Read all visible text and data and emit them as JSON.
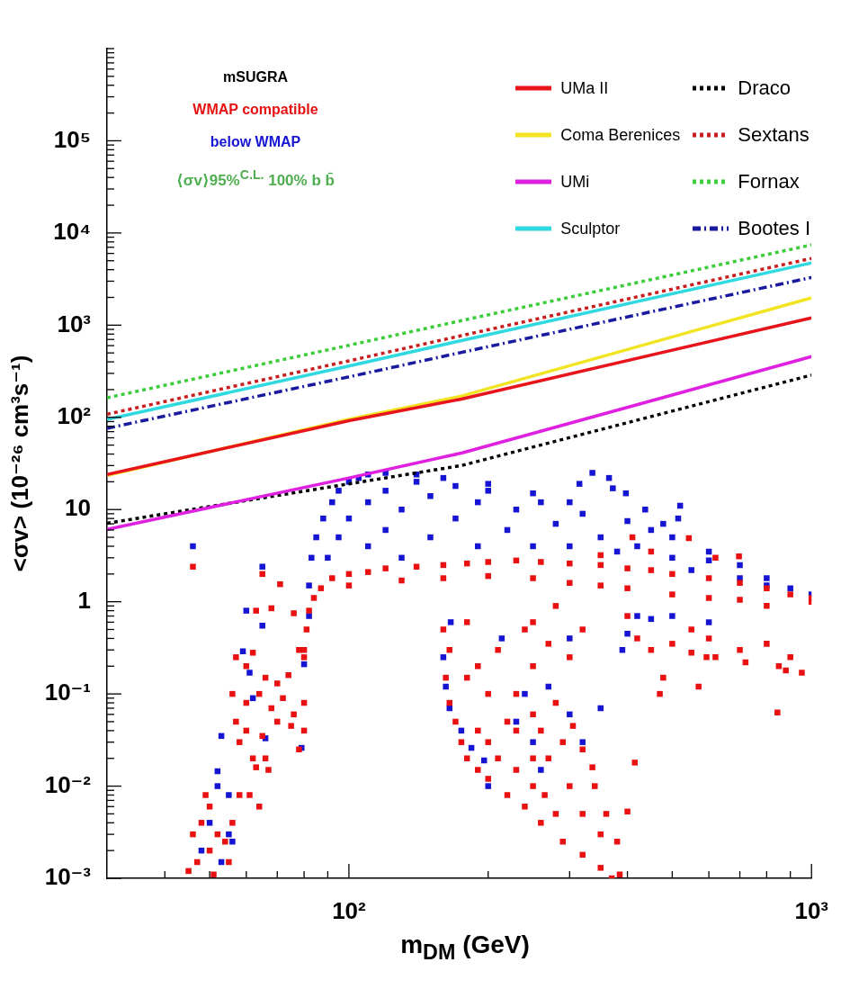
{
  "chart_data": {
    "type": "line",
    "log": "xy",
    "marker": "none",
    "legend": "top right",
    "xlabel": "m$_{DM}$ (GeV)",
    "ylabel": "<σv> (10⁻²⁶ cm³s⁻¹)",
    "annotations": [
      "mSUGRA",
      "⟨σv⟩95%$^{C.L.}$ 100% b b̄"
    ],
    "xlim": [
      30,
      1000
    ],
    "ylim": [
      0.001,
      1000000
    ],
    "xticks": [
      {
        "value": 40,
        "label": null
      },
      {
        "value": 50,
        "label": null
      },
      {
        "value": 60,
        "label": null
      },
      {
        "value": 70,
        "label": null
      },
      {
        "value": 80,
        "label": null
      },
      {
        "value": 90,
        "label": null
      },
      {
        "value": 100,
        "label": "10²"
      },
      {
        "value": 200,
        "label": null
      },
      {
        "value": 300,
        "label": null
      },
      {
        "value": 400,
        "label": null
      },
      {
        "value": 500,
        "label": null
      },
      {
        "value": 600,
        "label": null
      },
      {
        "value": 700,
        "label": null
      },
      {
        "value": 800,
        "label": null
      },
      {
        "value": 900,
        "label": null
      },
      {
        "value": 1000,
        "label": "10³"
      }
    ],
    "yticks": [
      {
        "value": 0.001,
        "label": "10⁻³"
      },
      {
        "value": 0.002,
        "label": null
      },
      {
        "value": 0.003,
        "label": null
      },
      {
        "value": 0.004,
        "label": null
      },
      {
        "value": 0.005,
        "label": null
      },
      {
        "value": 0.006,
        "label": null
      },
      {
        "value": 0.007,
        "label": null
      },
      {
        "value": 0.008,
        "label": null
      },
      {
        "value": 0.009,
        "label": null
      },
      {
        "value": 0.01,
        "label": "10⁻²"
      },
      {
        "value": 0.02,
        "label": null
      },
      {
        "value": 0.03,
        "label": null
      },
      {
        "value": 0.04,
        "label": null
      },
      {
        "value": 0.05,
        "label": null
      },
      {
        "value": 0.06,
        "label": null
      },
      {
        "value": 0.07,
        "label": null
      },
      {
        "value": 0.08,
        "label": null
      },
      {
        "value": 0.09,
        "label": null
      },
      {
        "value": 0.1,
        "label": "10⁻¹"
      },
      {
        "value": 0.2,
        "label": null
      },
      {
        "value": 0.3,
        "label": null
      },
      {
        "value": 0.4,
        "label": null
      },
      {
        "value": 0.5,
        "label": null
      },
      {
        "value": 0.6,
        "label": null
      },
      {
        "value": 0.7,
        "label": null
      },
      {
        "value": 0.8,
        "label": null
      },
      {
        "value": 0.9,
        "label": null
      },
      1,
      {
        "value": 2,
        "label": null
      },
      {
        "value": 3,
        "label": null
      },
      {
        "value": 4,
        "label": null
      },
      {
        "value": 5,
        "label": null
      },
      {
        "value": 6,
        "label": null
      },
      {
        "value": 7,
        "label": null
      },
      {
        "value": 8,
        "label": null
      },
      {
        "value": 9,
        "label": null
      },
      10,
      {
        "value": 20,
        "label": null
      },
      {
        "value": 30,
        "label": null
      },
      {
        "value": 40,
        "label": null
      },
      {
        "value": 50,
        "label": null
      },
      {
        "value": 60,
        "label": null
      },
      {
        "value": 70,
        "label": null
      },
      {
        "value": 80,
        "label": null
      },
      {
        "value": 90,
        "label": null
      },
      {
        "value": 100,
        "label": "10²"
      },
      {
        "value": 200,
        "label": null
      },
      {
        "value": 300,
        "label": null
      },
      {
        "value": 400,
        "label": null
      },
      {
        "value": 500,
        "label": null
      },
      {
        "value": 600,
        "label": null
      },
      {
        "value": 700,
        "label": null
      },
      {
        "value": 800,
        "label": null
      },
      {
        "value": 900,
        "label": null
      },
      {
        "value": 1000,
        "label": "10³"
      },
      {
        "value": 2000,
        "label": null
      },
      {
        "value": 3000,
        "label": null
      },
      {
        "value": 4000,
        "label": null
      },
      {
        "value": 5000,
        "label": null
      },
      {
        "value": 6000,
        "label": null
      },
      {
        "value": 7000,
        "label": null
      },
      {
        "value": 8000,
        "label": null
      },
      {
        "value": 9000,
        "label": null
      },
      {
        "value": 10000,
        "label": "10⁴"
      },
      {
        "value": 20000,
        "label": null
      },
      {
        "value": 30000,
        "label": null
      },
      {
        "value": 40000,
        "label": null
      },
      {
        "value": 50000,
        "label": null
      },
      {
        "value": 60000,
        "label": null
      },
      {
        "value": 70000,
        "label": null
      },
      {
        "value": 80000,
        "label": null
      },
      {
        "value": 90000,
        "label": null
      },
      {
        "value": 100000,
        "label": "10⁵"
      },
      {
        "value": 200000,
        "label": null
      },
      {
        "value": 300000,
        "label": null
      },
      {
        "value": 400000,
        "label": null
      },
      {
        "value": 500000,
        "label": null
      },
      {
        "value": 600000,
        "label": null
      },
      {
        "value": 700000,
        "label": null
      },
      {
        "value": 800000,
        "label": null
      },
      {
        "value": 900000,
        "label": null
      },
      {
        "value": 1000000,
        "label": null
      }
    ],
    "series": [
      {
        "name": "below WMAP",
        "type": "scatter",
        "marker": "square",
        "color": "#1414d2",
        "x": [
          46,
          65,
          60,
          65,
          59,
          61,
          62,
          53,
          52,
          55,
          52,
          50,
          55,
          53,
          48,
          56,
          80,
          79,
          66,
          82,
          82,
          83,
          85,
          88,
          92,
          95,
          100,
          105,
          110,
          120,
          140,
          160,
          200,
          250,
          300,
          400,
          500,
          600,
          700,
          800,
          900,
          1000,
          90,
          95,
          100,
          110,
          110,
          120,
          120,
          130,
          130,
          140,
          150,
          150,
          170,
          170,
          190,
          190,
          200,
          220,
          230,
          250,
          260,
          280,
          300,
          320,
          350,
          380,
          420,
          450,
          500,
          550,
          600,
          700,
          800,
          336,
          365,
          372,
          315,
          397,
          437,
          520,
          515,
          478,
          166,
          160,
          162,
          165,
          175,
          184,
          200,
          196,
          230,
          240,
          214,
          250,
          260,
          270,
          300,
          320,
          350,
          400,
          390,
          300,
          420,
          450,
          500,
          600
        ],
        "values": [
          4,
          2.4,
          0.8,
          0.55,
          0.29,
          0.17,
          0.09,
          0.035,
          0.0145,
          0.008,
          0.01,
          0.004,
          0.003,
          0.0015,
          0.002,
          0.0025,
          0.21,
          0.026,
          0.033,
          0.7,
          1.5,
          3,
          5,
          8,
          12,
          16,
          20,
          22,
          24,
          25,
          24,
          22,
          19,
          15,
          12,
          7.5,
          5,
          3.5,
          2.5,
          1.8,
          1.4,
          1.2,
          3,
          5,
          8,
          4,
          12,
          6,
          16,
          3,
          10,
          20,
          5,
          14,
          8,
          18,
          4,
          12,
          16,
          6,
          10,
          4,
          12,
          7,
          4,
          9,
          5,
          3.5,
          4,
          6,
          3,
          2.2,
          2.8,
          1.8,
          1.5,
          25,
          22,
          17,
          19,
          15,
          10,
          11,
          8,
          7,
          0.6,
          0.25,
          0.12,
          0.07,
          0.04,
          0.026,
          0.01,
          0.019,
          0.05,
          0.1,
          0.4,
          0.03,
          0.015,
          0.12,
          0.06,
          0.03,
          0.07,
          0.45,
          0.3,
          0.4,
          0.7,
          0.65,
          0.7,
          0.6
        ]
      },
      {
        "name": "WMAP compatible",
        "type": "scatter",
        "marker": "square",
        "color": "#e81010",
        "x": [
          46,
          65,
          71,
          63,
          68,
          76,
          57,
          60,
          62,
          66,
          70,
          74,
          78,
          80,
          56,
          60,
          64,
          68,
          72,
          76,
          80,
          57,
          60,
          65,
          70,
          75,
          80,
          58,
          62,
          66,
          78,
          63,
          67,
          58,
          61,
          64,
          46,
          48,
          50,
          47,
          45,
          52,
          54,
          55,
          56,
          51,
          49,
          50,
          80,
          81,
          82,
          84,
          87,
          92,
          100,
          110,
          120,
          140,
          160,
          180,
          200,
          230,
          260,
          300,
          350,
          400,
          450,
          500,
          600,
          700,
          800,
          900,
          1000,
          100,
          130,
          160,
          200,
          250,
          300,
          350,
          400,
          500,
          600,
          700,
          800,
          1000,
          697,
          543,
          410,
          350,
          450,
          620,
          250,
          280,
          320,
          400,
          420,
          450,
          500,
          550,
          600,
          620,
          700,
          720,
          800,
          850,
          900,
          844,
          953,
          880,
          570,
          593,
          550,
          478,
          470,
          415,
          400,
          160,
          165,
          162,
          165,
          170,
          175,
          180,
          190,
          200,
          220,
          240,
          260,
          290,
          320,
          350,
          370,
          385,
          380,
          360,
          340,
          336,
          320,
          305,
          290,
          270,
          250,
          230,
          210,
          200,
          190,
          220,
          250,
          280,
          230,
          200,
          190,
          180,
          210,
          250,
          300,
          270,
          240,
          180,
          300,
          280,
          250,
          320,
          350,
          265,
          230,
          260
        ],
        "values": [
          2.4,
          2,
          1.55,
          0.8,
          0.85,
          0.75,
          0.25,
          0.2,
          0.28,
          0.15,
          0.13,
          0.16,
          0.3,
          0.25,
          0.1,
          0.08,
          0.1,
          0.07,
          0.09,
          0.06,
          0.08,
          0.05,
          0.04,
          0.035,
          0.05,
          0.045,
          0.04,
          0.03,
          0.02,
          0.02,
          0.025,
          0.016,
          0.015,
          0.008,
          0.008,
          0.006,
          0.003,
          0.004,
          0.006,
          0.0015,
          0.0012,
          0.003,
          0.0025,
          0.0015,
          0.004,
          0.0011,
          0.008,
          0.002,
          0.3,
          0.5,
          0.8,
          1.1,
          1.4,
          1.8,
          2,
          2.1,
          2.3,
          2.4,
          2.5,
          2.6,
          2.7,
          2.8,
          2.7,
          2.6,
          2.5,
          2.3,
          2.2,
          2,
          1.8,
          1.6,
          1.4,
          1.2,
          1.1,
          1.5,
          1.7,
          1.8,
          1.9,
          1.8,
          1.6,
          1.5,
          1.4,
          1.2,
          1.1,
          1.05,
          0.9,
          1,
          3.1,
          4.9,
          5,
          3.2,
          3.5,
          3,
          0.6,
          0.9,
          0.5,
          0.7,
          0.4,
          0.3,
          0.35,
          0.5,
          0.4,
          0.25,
          0.3,
          0.22,
          0.35,
          0.2,
          0.25,
          0.063,
          0.17,
          0.18,
          0.12,
          0.25,
          0.28,
          0.15,
          0.1,
          0.018,
          0.0053,
          0.5,
          0.3,
          0.15,
          0.08,
          0.05,
          0.03,
          0.02,
          0.015,
          0.012,
          0.008,
          0.006,
          0.004,
          0.0025,
          0.0018,
          0.0013,
          0.001,
          0.0011,
          0.0025,
          0.005,
          0.01,
          0.016,
          0.025,
          0.045,
          0.03,
          0.02,
          0.02,
          0.015,
          0.02,
          0.03,
          0.04,
          0.05,
          0.06,
          0.08,
          0.1,
          0.1,
          0.2,
          0.15,
          0.3,
          0.2,
          0.25,
          0.35,
          0.5,
          0.6,
          0.01,
          0.005,
          0.01,
          0.005,
          0.003,
          0.008,
          0.04,
          0.04
        ]
      },
      {
        "name": "UMa II",
        "color": "#e8141c",
        "x": [
          30,
          100,
          175,
          1000
        ],
        "values": [
          24,
          92,
          158,
          1200
        ]
      },
      {
        "name": "Coma Berenices",
        "color": "#f2e422",
        "x": [
          30,
          100,
          175,
          1000
        ],
        "values": [
          23.5,
          95,
          170,
          1980
        ]
      },
      {
        "name": "UMi",
        "color": "#e020e0",
        "x": [
          30,
          100,
          175,
          1000
        ],
        "values": [
          6.1,
          22,
          41,
          456
        ]
      },
      {
        "name": "Sculptor",
        "color": "#30d8e0",
        "x": [
          30,
          100,
          175,
          1000
        ],
        "values": [
          95,
          360,
          680,
          4740
        ]
      },
      {
        "name": "Draco",
        "color": "#000000",
        "line_style": "dotted",
        "x": [
          30,
          100,
          175,
          1000
        ],
        "values": [
          7.1,
          19,
          30,
          287
        ]
      },
      {
        "name": "Sextans",
        "color": "#c81e1e",
        "line_style": "dotted",
        "x": [
          30,
          100,
          175,
          1000
        ],
        "values": [
          108,
          410,
          770,
          5300
        ]
      },
      {
        "name": "Fornax",
        "color": "#3ccc3c",
        "line_style": "dotted",
        "x": [
          30,
          100,
          175,
          1000
        ],
        "values": [
          163,
          605,
          1120,
          7430
        ]
      },
      {
        "name": "Bootes I",
        "color": "#1a1aa0",
        "line_style": "dashed",
        "x": [
          30,
          100,
          175,
          1000
        ],
        "values": [
          76,
          275,
          506,
          3290
        ]
      }
    ]
  }
}
